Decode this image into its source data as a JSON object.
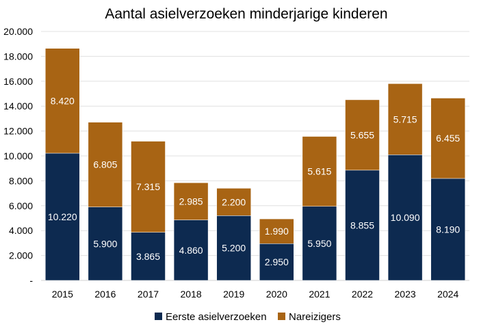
{
  "chart_data": {
    "type": "bar",
    "stacked": true,
    "title": "Aantal asielverzoeken minderjarige kinderen",
    "xlabel": "",
    "ylabel": "",
    "categories": [
      "2015",
      "2016",
      "2017",
      "2018",
      "2019",
      "2020",
      "2021",
      "2022",
      "2023",
      "2024"
    ],
    "ylim": [
      0,
      20000
    ],
    "yticks": [
      0,
      2000,
      4000,
      6000,
      8000,
      10000,
      12000,
      14000,
      16000,
      18000,
      20000
    ],
    "ytick_labels": [
      "-",
      "2.000",
      "4.000",
      "6.000",
      "8.000",
      "10.000",
      "12.000",
      "14.000",
      "16.000",
      "18.000",
      "20.000"
    ],
    "grid": true,
    "legend_position": "bottom",
    "series": [
      {
        "name": "Eerste asielverzoeken",
        "color": "#0d2a50",
        "values": [
          10220,
          5900,
          3865,
          4860,
          5200,
          2950,
          5950,
          8855,
          10090,
          8190
        ],
        "labels": [
          "10.220",
          "5.900",
          "3.865",
          "4.860",
          "5.200",
          "2.950",
          "5.950",
          "8.855",
          "10.090",
          "8.190"
        ]
      },
      {
        "name": "Nareizigers",
        "color": "#a86414",
        "values": [
          8420,
          6805,
          7315,
          2985,
          2200,
          1990,
          5615,
          5655,
          5715,
          6455
        ],
        "labels": [
          "8.420",
          "6.805",
          "7.315",
          "2.985",
          "2.200",
          "1.990",
          "5.615",
          "5.655",
          "5.715",
          "6.455"
        ]
      }
    ]
  }
}
